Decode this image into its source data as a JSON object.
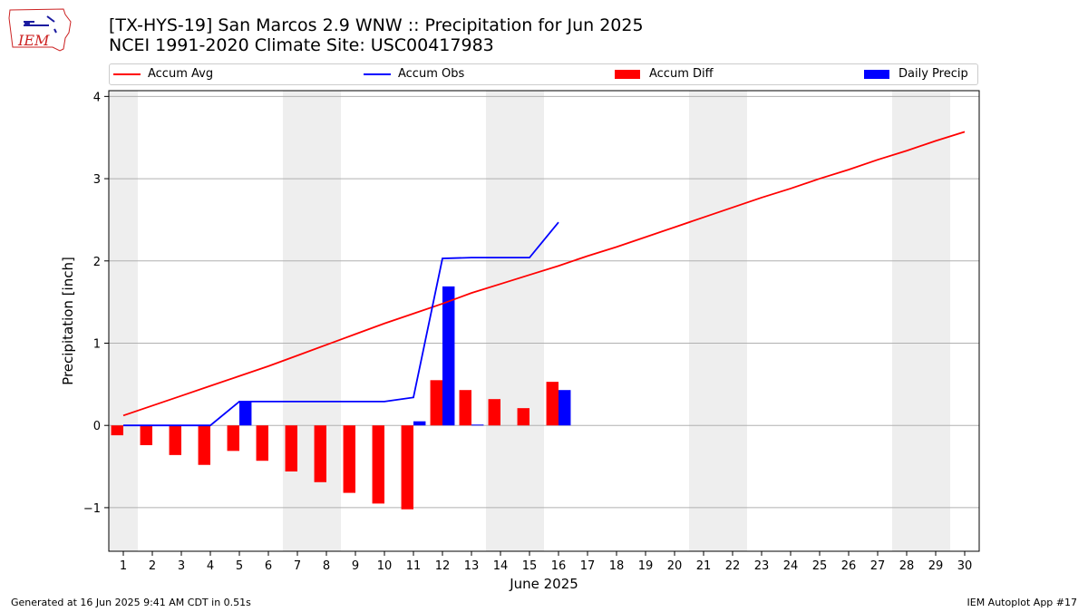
{
  "header": {
    "logo_text": "IEM",
    "title_line1": "[TX-HYS-19] San Marcos 2.9 WNW :: Precipitation for Jun 2025",
    "title_line2": "NCEI 1991-2020 Climate Site: USC00417983"
  },
  "legend": {
    "items": [
      {
        "label": "Accum Avg",
        "kind": "line",
        "color": "#ff0000"
      },
      {
        "label": "Accum Obs",
        "kind": "line",
        "color": "#0000ff"
      },
      {
        "label": "Accum Diff",
        "kind": "patch",
        "color": "#ff0000"
      },
      {
        "label": "Daily Precip",
        "kind": "patch",
        "color": "#0000ff"
      }
    ]
  },
  "footer": {
    "left": "Generated at 16 Jun 2025 9:41 AM CDT in 0.51s",
    "right": "IEM Autoplot App #17"
  },
  "chart_data": {
    "type": "bar",
    "xlabel": "June 2025",
    "ylabel": "Precipitation [inch]",
    "xlim": [
      0.5,
      30.5
    ],
    "ylim": [
      -1.53,
      4.07
    ],
    "yticks": [
      -1,
      0,
      1,
      2,
      3,
      4
    ],
    "ytick_labels": [
      "−1",
      "0",
      "1",
      "2",
      "3",
      "4"
    ],
    "days": [
      1,
      2,
      3,
      4,
      5,
      6,
      7,
      8,
      9,
      10,
      11,
      12,
      13,
      14,
      15,
      16,
      17,
      18,
      19,
      20,
      21,
      22,
      23,
      24,
      25,
      26,
      27,
      28,
      29,
      30
    ],
    "weekend_bands": [
      [
        0.5,
        1.5
      ],
      [
        6.5,
        8.5
      ],
      [
        13.5,
        15.5
      ],
      [
        20.5,
        22.5
      ],
      [
        27.5,
        29.5
      ]
    ],
    "grid": "horizontal",
    "series": [
      {
        "name": "Accum Avg",
        "kind": "line",
        "color": "#ff0000",
        "x": [
          1,
          2,
          3,
          4,
          5,
          6,
          7,
          8,
          9,
          10,
          11,
          12,
          13,
          14,
          15,
          16,
          17,
          18,
          19,
          20,
          21,
          22,
          23,
          24,
          25,
          26,
          27,
          28,
          29,
          30
        ],
        "values": [
          0.12,
          0.24,
          0.36,
          0.48,
          0.6,
          0.72,
          0.85,
          0.98,
          1.11,
          1.24,
          1.36,
          1.48,
          1.61,
          1.72,
          1.83,
          1.94,
          2.06,
          2.17,
          2.29,
          2.41,
          2.53,
          2.65,
          2.77,
          2.88,
          3.0,
          3.11,
          3.23,
          3.34,
          3.46,
          3.57
        ]
      },
      {
        "name": "Accum Obs",
        "kind": "line",
        "color": "#0000ff",
        "x": [
          1,
          2,
          3,
          4,
          5,
          6,
          7,
          8,
          9,
          10,
          11,
          12,
          13,
          14,
          15,
          16
        ],
        "values": [
          0,
          0,
          0,
          0,
          0.29,
          0.29,
          0.29,
          0.29,
          0.29,
          0.29,
          0.34,
          2.03,
          2.04,
          2.04,
          2.04,
          2.47
        ]
      },
      {
        "name": "Accum Diff",
        "kind": "bar",
        "color": "#ff0000",
        "x": [
          1,
          2,
          3,
          4,
          5,
          6,
          7,
          8,
          9,
          10,
          11,
          12,
          13,
          14,
          15,
          16
        ],
        "values": [
          -0.12,
          -0.24,
          -0.36,
          -0.48,
          -0.31,
          -0.43,
          -0.56,
          -0.69,
          -0.82,
          -0.95,
          -1.02,
          0.55,
          0.43,
          0.32,
          0.21,
          0.53
        ]
      },
      {
        "name": "Daily Precip",
        "kind": "bar",
        "color": "#0000ff",
        "x": [
          1,
          2,
          3,
          4,
          5,
          6,
          7,
          8,
          9,
          10,
          11,
          12,
          13,
          14,
          15,
          16
        ],
        "values": [
          0,
          0,
          0,
          0,
          0.29,
          0,
          0,
          0,
          0,
          0,
          0.05,
          1.69,
          0.01,
          0,
          0,
          0.43
        ]
      }
    ]
  }
}
